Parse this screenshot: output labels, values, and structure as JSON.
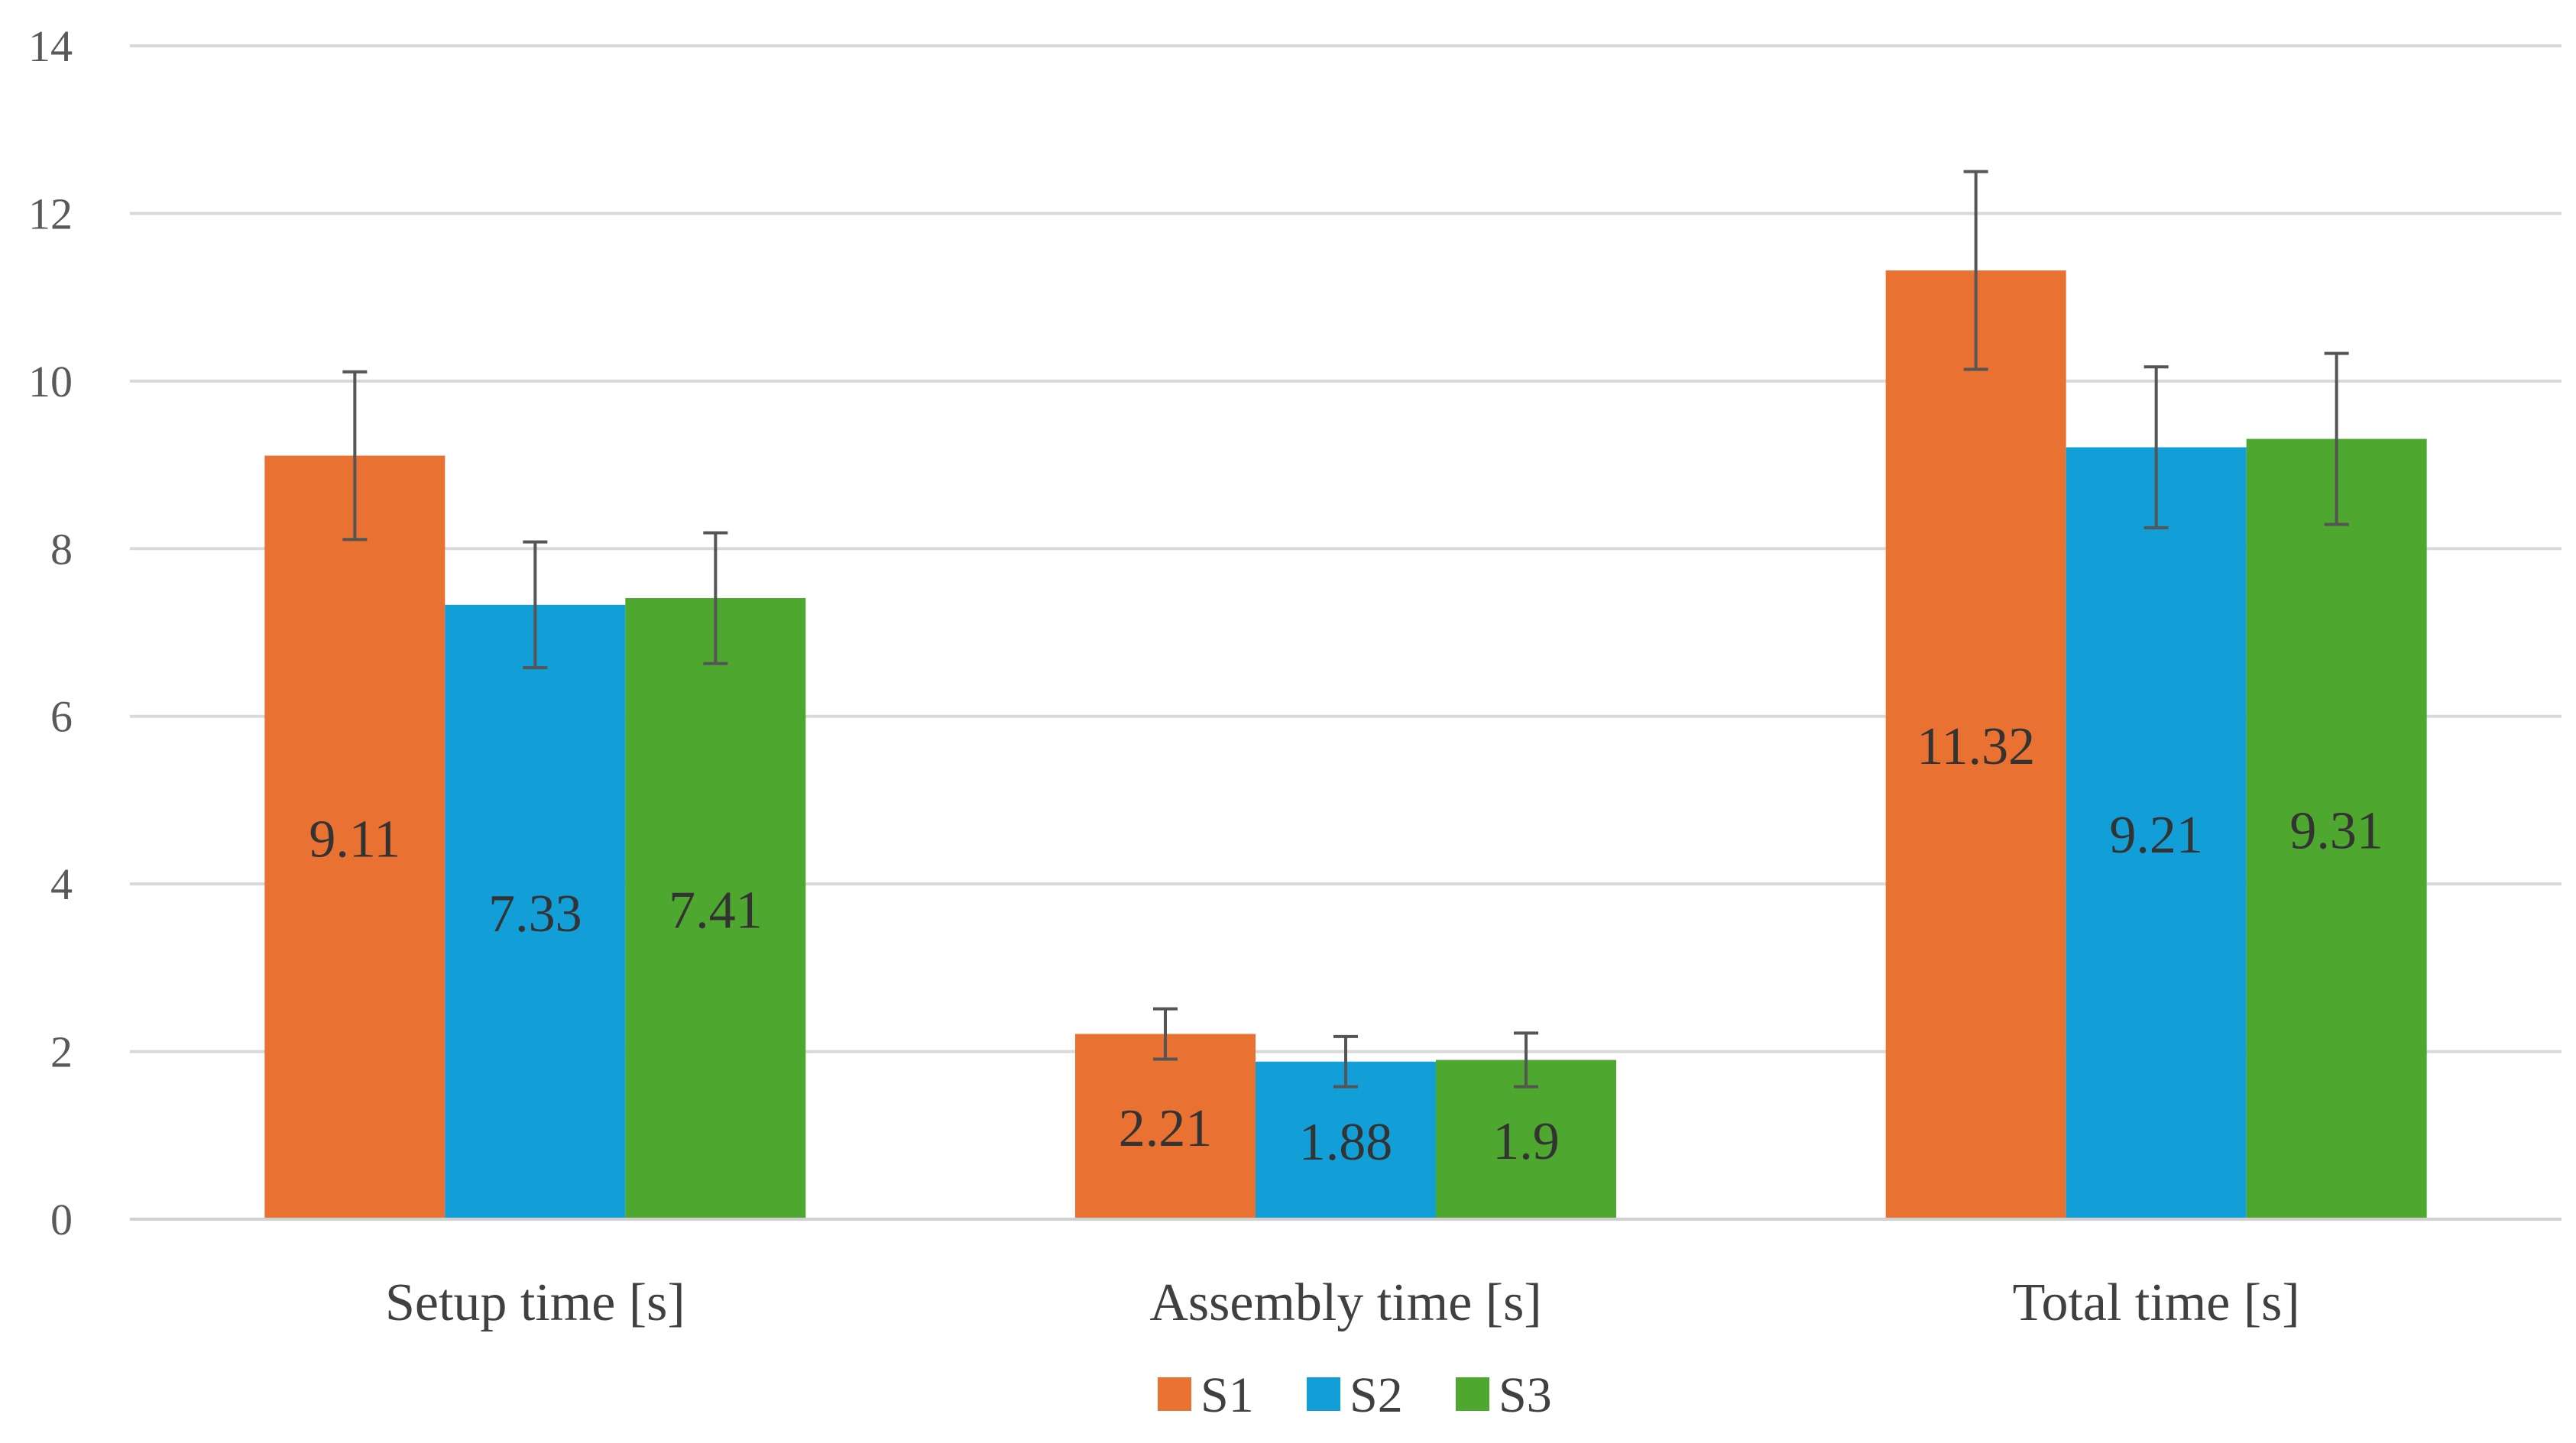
{
  "chart_data": {
    "type": "bar",
    "title": "",
    "xlabel": "",
    "ylabel": "",
    "categories": [
      "Setup time [s]",
      "Assembly time [s]",
      "Total time [s]"
    ],
    "ylim": [
      0,
      14
    ],
    "yticks": [
      0,
      2,
      4,
      6,
      8,
      10,
      12,
      14
    ],
    "grid": true,
    "legend_position": "bottom",
    "series": [
      {
        "name": "S1",
        "color": "#E97132",
        "values": [
          9.11,
          2.21,
          11.32
        ],
        "labels": [
          "9.11",
          "2.21",
          "11.32"
        ],
        "error": [
          1.0,
          0.3,
          1.18
        ]
      },
      {
        "name": "S2",
        "color": "#129FD8",
        "values": [
          7.33,
          1.88,
          9.21
        ],
        "labels": [
          "7.33",
          "1.88",
          "9.21"
        ],
        "error": [
          0.75,
          0.3,
          0.96
        ]
      },
      {
        "name": "S3",
        "color": "#4EA72E",
        "values": [
          7.41,
          1.9,
          9.31
        ],
        "labels": [
          "7.41",
          "1.9",
          "9.31"
        ],
        "error": [
          0.78,
          0.32,
          1.02
        ]
      }
    ]
  }
}
